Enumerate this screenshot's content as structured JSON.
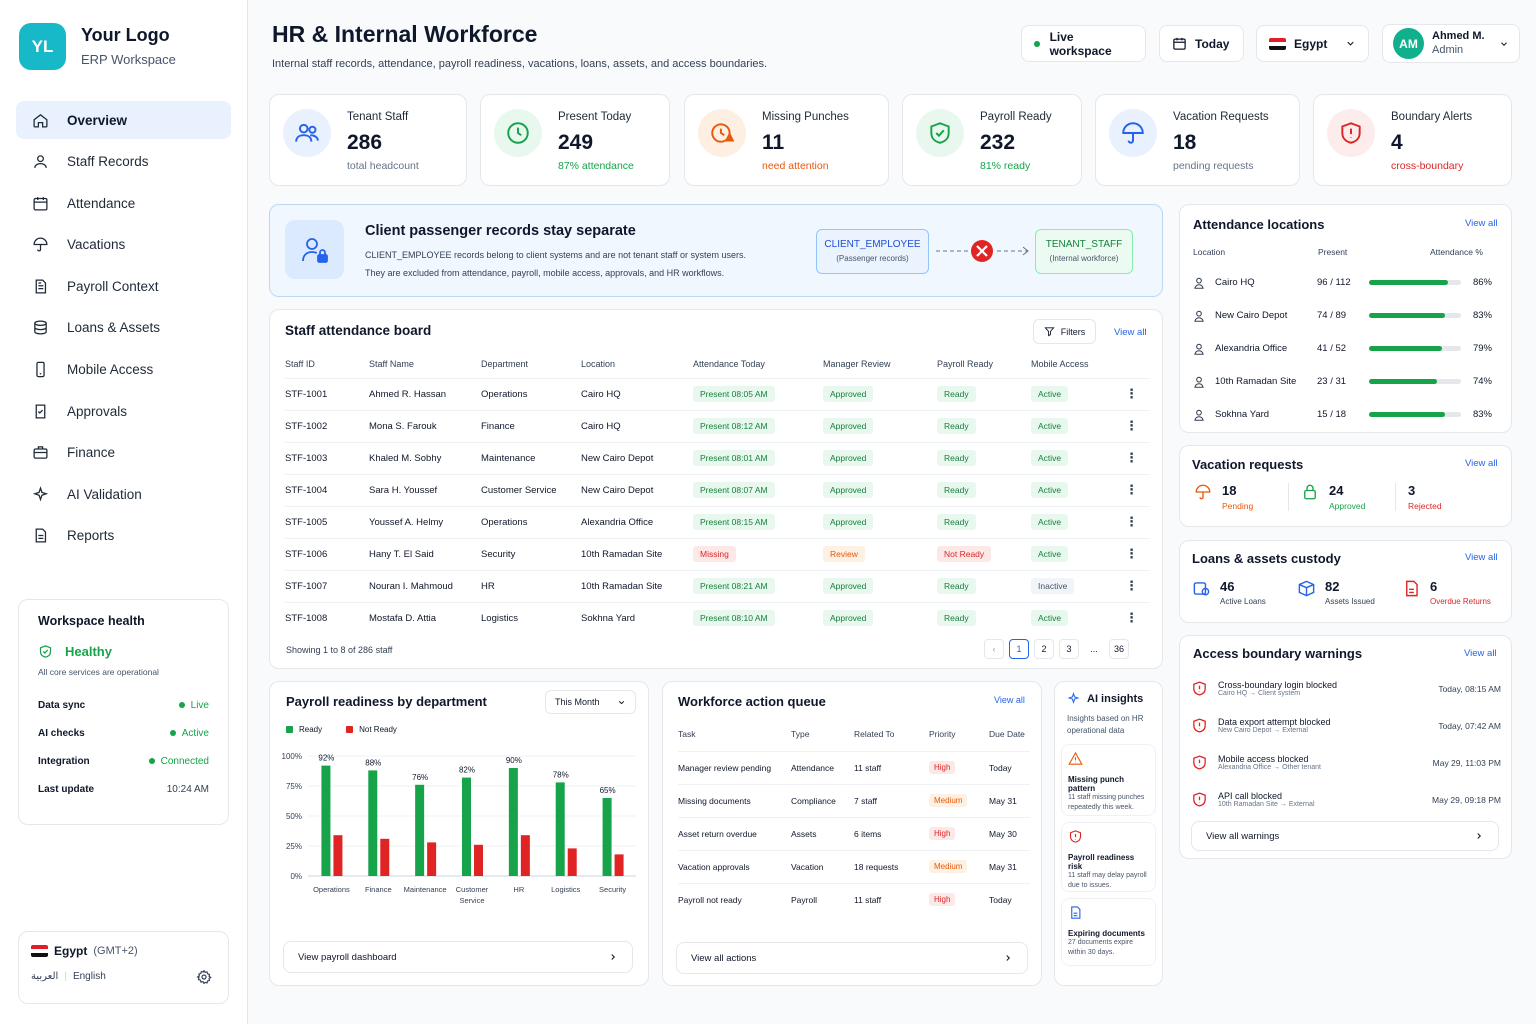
{
  "brand": {
    "initials": "YL",
    "name": "Your Logo",
    "sub": "ERP Workspace"
  },
  "nav": [
    {
      "label": "Overview",
      "icon": "home-icon"
    },
    {
      "label": "Staff Records",
      "icon": "user-icon"
    },
    {
      "label": "Attendance",
      "icon": "calendar-icon"
    },
    {
      "label": "Vacations",
      "icon": "umbrella-icon"
    },
    {
      "label": "Payroll Context",
      "icon": "document-icon"
    },
    {
      "label": "Loans & Assets",
      "icon": "layers-icon"
    },
    {
      "label": "Mobile Access",
      "icon": "phone-icon"
    },
    {
      "label": "Approvals",
      "icon": "check-document-icon"
    },
    {
      "label": "Finance",
      "icon": "briefcase-icon"
    },
    {
      "label": "AI Validation",
      "icon": "sparkle-icon"
    },
    {
      "label": "Reports",
      "icon": "report-icon"
    }
  ],
  "health": {
    "title": "Workspace health",
    "status": "Healthy",
    "desc": "All core services are operational",
    "rows": [
      {
        "k": "Data sync",
        "v": "Live"
      },
      {
        "k": "AI checks",
        "v": "Active"
      },
      {
        "k": "Integration",
        "v": "Connected"
      },
      {
        "k": "Last update",
        "v": "10:24 AM"
      }
    ]
  },
  "locale": {
    "country": "Egypt",
    "tz": "(GMT+2)",
    "ar": "العربية",
    "en": "English"
  },
  "header": {
    "title": "HR & Internal Workforce",
    "subtitle": "Internal staff records, attendance, payroll readiness, vacations, loans, assets, and access boundaries.",
    "live": "Live workspace",
    "today": "Today",
    "country": "Egypt",
    "user_initials": "AM",
    "user_name": "Ahmed M.",
    "user_role": "Admin"
  },
  "stats": [
    {
      "label": "Tenant Staff",
      "value": "286",
      "sub": "total headcount",
      "color": "#64748b",
      "icon": "users-icon",
      "bg": "#e8f1fd"
    },
    {
      "label": "Present Today",
      "value": "249",
      "sub": "87% attendance",
      "color": "#16a34a",
      "icon": "clock-icon",
      "bg": "#e9f8ee"
    },
    {
      "label": "Missing Punches",
      "value": "11",
      "sub": "need attention",
      "color": "#ea580c",
      "icon": "alert-clock-icon",
      "bg": "#fdefe2"
    },
    {
      "label": "Payroll Ready",
      "value": "232",
      "sub": "81% ready",
      "color": "#16a34a",
      "icon": "shield-check-icon",
      "bg": "#e9f8ee"
    },
    {
      "label": "Vacation Requests",
      "value": "18",
      "sub": "pending requests",
      "color": "#64748b",
      "icon": "umbrella-icon",
      "bg": "#e8f1fd"
    },
    {
      "label": "Boundary Alerts",
      "value": "4",
      "sub": "cross-boundary",
      "color": "#dc2626",
      "icon": "shield-alert-icon",
      "bg": "#fdecec"
    }
  ],
  "banner": {
    "title": "Client passenger records stay separate",
    "line1": "CLIENT_EMPLOYEE records belong to client systems and are not tenant staff or system users.",
    "line2": "They are excluded from attendance, payroll, mobile access, approvals, and HR workflows.",
    "left_t": "CLIENT_EMPLOYEE",
    "left_s": "(Passenger records)",
    "right_t": "TENANT_STAFF",
    "right_s": "(Internal workforce)"
  },
  "board": {
    "title": "Staff attendance board",
    "filters": "Filters",
    "view_all": "View all",
    "headers": [
      "Staff ID",
      "Staff Name",
      "Department",
      "Location",
      "Attendance Today",
      "Manager Review",
      "Payroll Ready",
      "Mobile Access"
    ],
    "rows": [
      {
        "id": "STF-1001",
        "name": "Ahmed R. Hassan",
        "dept": "Operations",
        "loc": "Cairo HQ",
        "att": "Present 08:05 AM",
        "rev": "Approved",
        "pay": "Ready",
        "mob": "Active",
        "attc": "pg",
        "revc": "pg",
        "payc": "pg",
        "mobc": "pg"
      },
      {
        "id": "STF-1002",
        "name": "Mona S. Farouk",
        "dept": "Finance",
        "loc": "Cairo HQ",
        "att": "Present 08:12 AM",
        "rev": "Approved",
        "pay": "Ready",
        "mob": "Active",
        "attc": "pg",
        "revc": "pg",
        "payc": "pg",
        "mobc": "pg"
      },
      {
        "id": "STF-1003",
        "name": "Khaled M. Sobhy",
        "dept": "Maintenance",
        "loc": "New Cairo Depot",
        "att": "Present 08:01 AM",
        "rev": "Approved",
        "pay": "Ready",
        "mob": "Active",
        "attc": "pg",
        "revc": "pg",
        "payc": "pg",
        "mobc": "pg"
      },
      {
        "id": "STF-1004",
        "name": "Sara H. Youssef",
        "dept": "Customer Service",
        "loc": "New Cairo Depot",
        "att": "Present 08:07 AM",
        "rev": "Approved",
        "pay": "Ready",
        "mob": "Active",
        "attc": "pg",
        "revc": "pg",
        "payc": "pg",
        "mobc": "pg"
      },
      {
        "id": "STF-1005",
        "name": "Youssef A. Helmy",
        "dept": "Operations",
        "loc": "Alexandria Office",
        "att": "Present 08:15 AM",
        "rev": "Approved",
        "pay": "Ready",
        "mob": "Active",
        "attc": "pg",
        "revc": "pg",
        "payc": "pg",
        "mobc": "pg"
      },
      {
        "id": "STF-1006",
        "name": "Hany T. El Said",
        "dept": "Security",
        "loc": "10th Ramadan Site",
        "att": "Missing",
        "rev": "Review",
        "pay": "Not Ready",
        "mob": "Active",
        "attc": "pr",
        "revc": "po",
        "payc": "pr",
        "mobc": "pg"
      },
      {
        "id": "STF-1007",
        "name": "Nouran I. Mahmoud",
        "dept": "HR",
        "loc": "10th Ramadan Site",
        "att": "Present 08:21 AM",
        "rev": "Approved",
        "pay": "Ready",
        "mob": "Inactive",
        "attc": "pg",
        "revc": "pg",
        "payc": "pg",
        "mobc": "pgray"
      },
      {
        "id": "STF-1008",
        "name": "Mostafa D. Attia",
        "dept": "Logistics",
        "loc": "Sokhna Yard",
        "att": "Present 08:10 AM",
        "rev": "Approved",
        "pay": "Ready",
        "mob": "Active",
        "attc": "pg",
        "revc": "pg",
        "payc": "pg",
        "mobc": "pg"
      }
    ],
    "footer": "Showing 1 to 8 of 286 staff",
    "pages": [
      "1",
      "2",
      "3",
      "...",
      "36"
    ]
  },
  "locations": {
    "title": "Attendance locations",
    "view_all": "View all",
    "h_loc": "Location",
    "h_present": "Present",
    "h_pct": "Attendance %",
    "rows": [
      {
        "name": "Cairo HQ",
        "present": "96 / 112",
        "pct": "86%",
        "frac": 0.86
      },
      {
        "name": "New Cairo Depot",
        "present": "74 / 89",
        "pct": "83%",
        "frac": 0.83
      },
      {
        "name": "Alexandria Office",
        "present": "41 / 52",
        "pct": "79%",
        "frac": 0.79
      },
      {
        "name": "10th Ramadan Site",
        "present": "23 / 31",
        "pct": "74%",
        "frac": 0.74
      },
      {
        "name": "Sokhna Yard",
        "present": "15 / 18",
        "pct": "83%",
        "frac": 0.83
      }
    ]
  },
  "vacations": {
    "title": "Vacation requests",
    "view_all": "View all",
    "items": [
      {
        "n": "18",
        "l": "Pending",
        "c": "#ea580c"
      },
      {
        "n": "24",
        "l": "Approved",
        "c": "#16a34a"
      },
      {
        "n": "3",
        "l": "Rejected",
        "c": "#dc2626"
      }
    ]
  },
  "loans": {
    "title": "Loans & assets custody",
    "view_all": "View all",
    "items": [
      {
        "n": "46",
        "l": "Active Loans",
        "c": "#334155"
      },
      {
        "n": "82",
        "l": "Assets Issued",
        "c": "#334155"
      },
      {
        "n": "6",
        "l": "Overdue Returns",
        "c": "#dc2626"
      }
    ]
  },
  "warnings": {
    "title": "Access boundary warnings",
    "view_all": "View all",
    "footer": "View all warnings",
    "rows": [
      {
        "t": "Cross-boundary login blocked",
        "s": "Cairo HQ → Client system",
        "d": "Today, 08:15 AM"
      },
      {
        "t": "Data export attempt blocked",
        "s": "New Cairo Depot → External",
        "d": "Today, 07:42 AM"
      },
      {
        "t": "Mobile access blocked",
        "s": "Alexandria Office → Other tenant",
        "d": "May 29, 11:03 PM"
      },
      {
        "t": "API call blocked",
        "s": "10th Ramadan Site → External",
        "d": "May 29, 09:18 PM"
      }
    ]
  },
  "payroll": {
    "title": "Payroll readiness by department",
    "period": "This Month",
    "footer": "View payroll dashboard",
    "legend_ready": "Ready",
    "legend_not": "Not Ready"
  },
  "chart_data": {
    "type": "bar",
    "categories": [
      "Operations",
      "Finance",
      "Maintenance",
      "Customer Service",
      "HR",
      "Logistics",
      "Security"
    ],
    "series": [
      {
        "name": "Ready",
        "values": [
          92,
          88,
          76,
          82,
          90,
          78,
          65
        ],
        "color": "#16a34a"
      },
      {
        "name": "Not Ready",
        "values": [
          34,
          31,
          28,
          26,
          34,
          23,
          18
        ],
        "color": "#e02424"
      }
    ],
    "yticks": [
      "100%",
      "75%",
      "50%",
      "25%",
      "0%"
    ],
    "ylim": [
      0,
      100
    ],
    "data_labels": [
      "92%",
      "88%",
      "76%",
      "82%",
      "90%",
      "78%",
      "65%"
    ]
  },
  "queue": {
    "title": "Workforce action queue",
    "view_all": "View all",
    "footer": "View all actions",
    "headers": [
      "Task",
      "Type",
      "Related To",
      "Priority",
      "Due Date"
    ],
    "rows": [
      {
        "task": "Manager review pending",
        "type": "Attendance",
        "rel": "11 staff",
        "pri": "High",
        "due": "Today",
        "pc": "pr"
      },
      {
        "task": "Missing documents",
        "type": "Compliance",
        "rel": "7 staff",
        "pri": "Medium",
        "due": "May 31",
        "pc": "po"
      },
      {
        "task": "Asset return overdue",
        "type": "Assets",
        "rel": "6 items",
        "pri": "High",
        "due": "May 30",
        "pc": "pr"
      },
      {
        "task": "Vacation approvals",
        "type": "Vacation",
        "rel": "18 requests",
        "pri": "Medium",
        "due": "May 31",
        "pc": "po"
      },
      {
        "task": "Payroll not ready",
        "type": "Payroll",
        "rel": "11 staff",
        "pri": "High",
        "due": "Today",
        "pc": "pr"
      }
    ]
  },
  "insights": {
    "title": "AI insights",
    "sub": "Insights based on HR operational data",
    "items": [
      {
        "t": "Missing punch pattern",
        "d": "11 staff missing punches repeatedly this week.",
        "icon": "warning-icon",
        "c": "#ea580c"
      },
      {
        "t": "Payroll readiness risk",
        "d": "11 staff may delay payroll due to issues.",
        "icon": "shield-alert-icon",
        "c": "#dc2626"
      },
      {
        "t": "Expiring documents",
        "d": "27 documents expire within 30 days.",
        "icon": "file-icon",
        "c": "#2563eb"
      }
    ]
  }
}
